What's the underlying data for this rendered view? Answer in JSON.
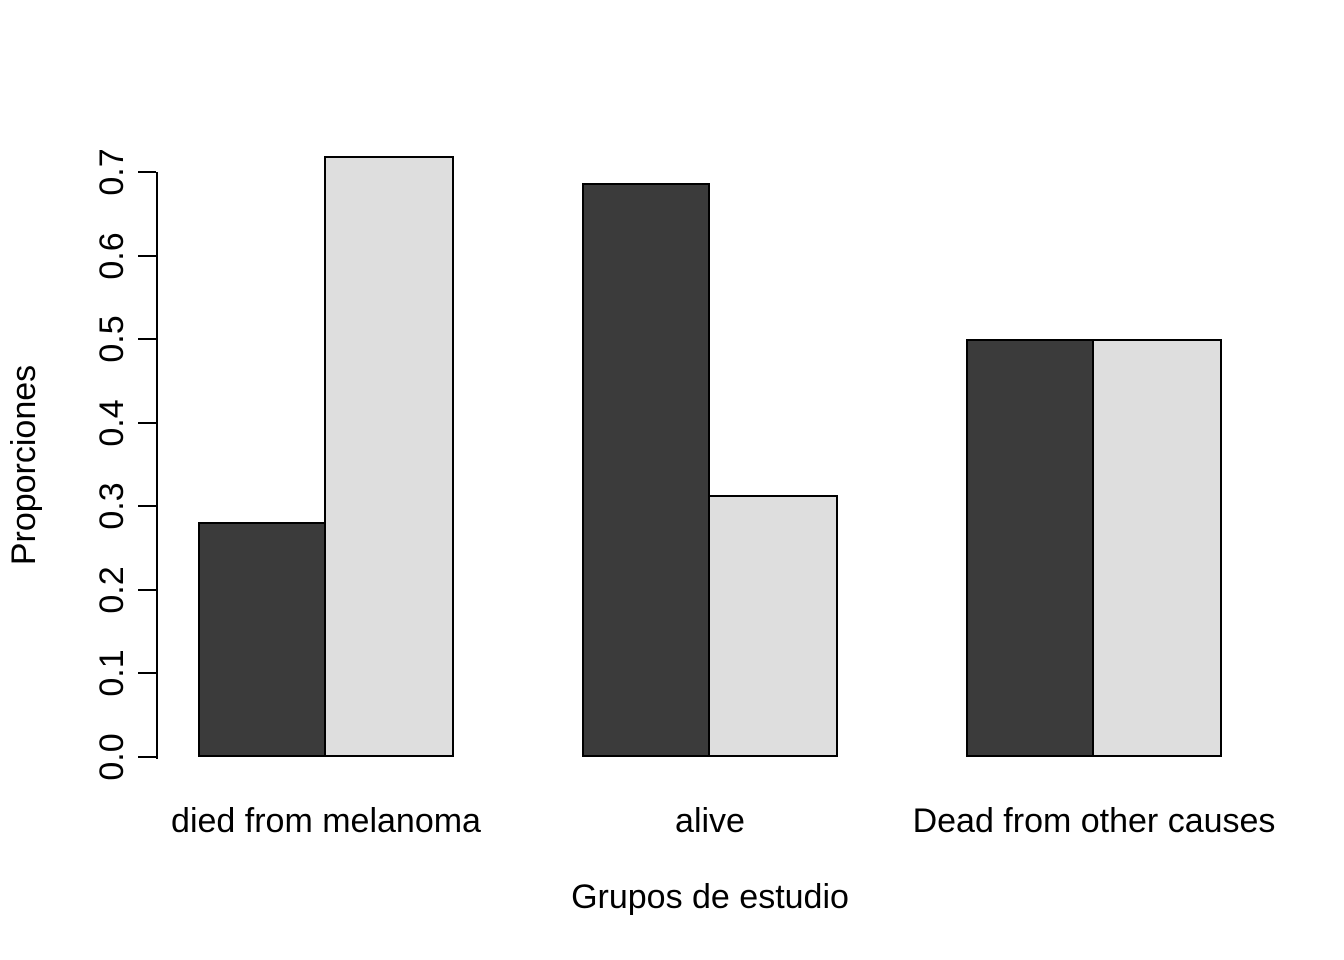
{
  "chart_data": {
    "type": "bar",
    "grouped": true,
    "categories": [
      "died from melanoma",
      "alive",
      "Dead from other causes"
    ],
    "series": [
      {
        "name": "dark-gray-series",
        "color": "#3b3b3b",
        "values": [
          0.281,
          0.687,
          0.5
        ]
      },
      {
        "name": "light-gray-series",
        "color": "#dedede",
        "values": [
          0.719,
          0.313,
          0.5
        ]
      }
    ],
    "title": "",
    "xlabel": "Grupos de estudio",
    "ylabel": "Proporciones",
    "ylim": [
      0.0,
      0.7
    ],
    "yticks": [
      0.0,
      0.1,
      0.2,
      0.3,
      0.4,
      0.5,
      0.6,
      0.7
    ],
    "grid": false,
    "legend": "none",
    "bar_border_color": "#000000",
    "background_color": "#ffffff"
  }
}
